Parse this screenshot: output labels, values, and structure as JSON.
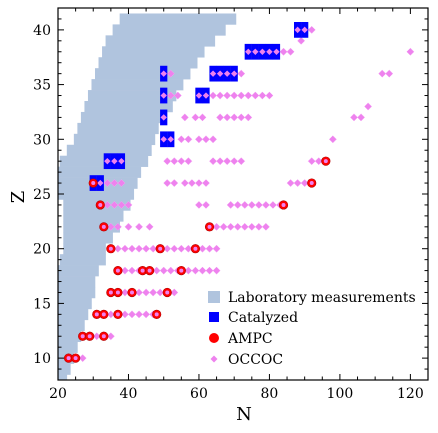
{
  "chart_data": {
    "type": "scatter",
    "xlabel": "N",
    "ylabel": "Z",
    "xlim": [
      20,
      125
    ],
    "ylim": [
      8,
      42
    ],
    "x_ticks": [
      20,
      40,
      60,
      80,
      100,
      120
    ],
    "y_ticks": [
      10,
      15,
      20,
      25,
      30,
      35,
      40
    ],
    "legend_position": "lower-right",
    "colors": {
      "lab": "#b0c4de",
      "catalyzed": "#0000ff",
      "ampc": "#ff0000",
      "occoc": "#ee82ee",
      "occoc_edge": "#f4a6f4"
    },
    "series": [
      {
        "name": "Laboratory measurements",
        "kind": "band",
        "rows": [
          [
            8,
            20,
            22
          ],
          [
            9,
            20,
            23
          ],
          [
            10,
            20,
            24
          ],
          [
            11,
            20,
            25
          ],
          [
            12,
            20,
            26
          ],
          [
            13,
            20,
            27
          ],
          [
            14,
            20,
            28
          ],
          [
            15,
            20,
            29
          ],
          [
            16,
            20,
            30
          ],
          [
            17,
            20,
            30
          ],
          [
            18,
            20,
            31
          ],
          [
            19,
            21,
            33
          ],
          [
            20,
            22,
            33
          ],
          [
            21,
            22,
            35
          ],
          [
            22,
            22,
            37
          ],
          [
            23,
            22,
            38
          ],
          [
            24,
            22,
            40
          ],
          [
            25,
            20,
            41
          ],
          [
            26,
            20,
            42
          ],
          [
            27,
            20,
            43
          ],
          [
            28,
            21,
            45
          ],
          [
            29,
            23,
            46
          ],
          [
            30,
            25,
            47
          ],
          [
            31,
            26,
            48
          ],
          [
            32,
            27,
            50
          ],
          [
            33,
            28,
            52
          ],
          [
            34,
            29,
            53
          ],
          [
            35,
            30,
            55
          ],
          [
            36,
            31,
            57
          ],
          [
            37,
            32,
            59
          ],
          [
            38,
            33,
            61
          ],
          [
            39,
            34,
            64
          ],
          [
            40,
            36,
            67
          ],
          [
            41,
            38,
            70
          ]
        ]
      },
      {
        "name": "Catalyzed",
        "kind": "square",
        "points": [
          [
            34,
            28
          ],
          [
            36,
            28
          ],
          [
            38,
            28
          ],
          [
            30,
            26
          ],
          [
            32,
            26
          ],
          [
            50,
            36
          ],
          [
            50,
            34
          ],
          [
            50,
            32
          ],
          [
            50,
            30
          ],
          [
            52,
            30
          ],
          [
            60,
            34
          ],
          [
            62,
            34
          ],
          [
            64,
            36
          ],
          [
            66,
            36
          ],
          [
            68,
            36
          ],
          [
            70,
            36
          ],
          [
            74,
            38
          ],
          [
            76,
            38
          ],
          [
            78,
            38
          ],
          [
            80,
            38
          ],
          [
            82,
            38
          ],
          [
            88,
            40
          ],
          [
            90,
            40
          ]
        ]
      },
      {
        "name": "AMPC",
        "kind": "circle",
        "points": [
          [
            23,
            10
          ],
          [
            25,
            10
          ],
          [
            27,
            12
          ],
          [
            29,
            12
          ],
          [
            33,
            12
          ],
          [
            31,
            14
          ],
          [
            33,
            14
          ],
          [
            37,
            14
          ],
          [
            48,
            14
          ],
          [
            35,
            16
          ],
          [
            37,
            16
          ],
          [
            41,
            16
          ],
          [
            51,
            16
          ],
          [
            37,
            18
          ],
          [
            44,
            18
          ],
          [
            46,
            18
          ],
          [
            55,
            18
          ],
          [
            35,
            20
          ],
          [
            49,
            20
          ],
          [
            59,
            20
          ],
          [
            63,
            22
          ],
          [
            33,
            22
          ],
          [
            32,
            24
          ],
          [
            84,
            24
          ],
          [
            30,
            26
          ],
          [
            92,
            26
          ],
          [
            96,
            28
          ]
        ]
      },
      {
        "name": "OCCOC",
        "kind": "diamond",
        "points": [
          [
            27,
            10
          ],
          [
            31,
            12
          ],
          [
            35,
            12
          ],
          [
            35,
            14
          ],
          [
            39,
            14
          ],
          [
            41,
            14
          ],
          [
            43,
            14
          ],
          [
            45,
            14
          ],
          [
            47,
            14
          ],
          [
            39,
            16
          ],
          [
            43,
            16
          ],
          [
            45,
            16
          ],
          [
            47,
            16
          ],
          [
            49,
            16
          ],
          [
            53,
            16
          ],
          [
            39,
            18
          ],
          [
            41,
            18
          ],
          [
            43,
            18
          ],
          [
            48,
            18
          ],
          [
            50,
            18
          ],
          [
            52,
            18
          ],
          [
            54,
            18
          ],
          [
            57,
            18
          ],
          [
            59,
            18
          ],
          [
            61,
            18
          ],
          [
            63,
            18
          ],
          [
            65,
            18
          ],
          [
            37,
            20
          ],
          [
            39,
            20
          ],
          [
            41,
            20
          ],
          [
            43,
            20
          ],
          [
            45,
            20
          ],
          [
            47,
            20
          ],
          [
            51,
            20
          ],
          [
            53,
            20
          ],
          [
            55,
            20
          ],
          [
            57,
            20
          ],
          [
            61,
            20
          ],
          [
            63,
            20
          ],
          [
            65,
            20
          ],
          [
            35,
            22
          ],
          [
            37,
            22
          ],
          [
            40,
            22
          ],
          [
            43,
            22
          ],
          [
            46,
            22
          ],
          [
            65,
            22
          ],
          [
            67,
            22
          ],
          [
            69,
            22
          ],
          [
            71,
            22
          ],
          [
            73,
            22
          ],
          [
            75,
            22
          ],
          [
            77,
            22
          ],
          [
            79,
            22
          ],
          [
            34,
            24
          ],
          [
            36,
            24
          ],
          [
            38,
            24
          ],
          [
            40,
            24
          ],
          [
            69,
            24
          ],
          [
            71,
            24
          ],
          [
            73,
            24
          ],
          [
            75,
            24
          ],
          [
            77,
            24
          ],
          [
            79,
            24
          ],
          [
            81,
            24
          ],
          [
            83,
            24
          ],
          [
            34,
            26
          ],
          [
            36,
            26
          ],
          [
            38,
            26
          ],
          [
            51,
            26
          ],
          [
            53,
            26
          ],
          [
            86,
            26
          ],
          [
            88,
            26
          ],
          [
            90,
            26
          ],
          [
            51,
            28
          ],
          [
            53,
            28
          ],
          [
            55,
            28
          ],
          [
            57,
            28
          ],
          [
            92,
            28
          ],
          [
            94,
            28
          ],
          [
            55,
            30
          ],
          [
            57,
            30
          ],
          [
            98,
            30
          ],
          [
            56,
            32
          ],
          [
            59,
            32
          ],
          [
            61,
            32
          ],
          [
            104,
            32
          ],
          [
            106,
            32
          ],
          [
            60,
            30
          ],
          [
            62,
            30
          ],
          [
            64,
            30
          ],
          [
            64,
            28
          ],
          [
            66,
            28
          ],
          [
            68,
            28
          ],
          [
            70,
            28
          ],
          [
            72,
            28
          ],
          [
            52,
            34
          ],
          [
            54,
            34
          ],
          [
            64,
            34
          ],
          [
            66,
            34
          ],
          [
            68,
            34
          ],
          [
            70,
            34
          ],
          [
            72,
            34
          ],
          [
            74,
            34
          ],
          [
            76,
            34
          ],
          [
            78,
            34
          ],
          [
            80,
            34
          ],
          [
            52,
            36
          ],
          [
            72,
            36
          ],
          [
            56,
            26
          ],
          [
            58,
            26
          ],
          [
            60,
            26
          ],
          [
            62,
            26
          ],
          [
            60,
            24
          ],
          [
            62,
            24
          ],
          [
            66,
            32
          ],
          [
            68,
            32
          ],
          [
            70,
            32
          ],
          [
            72,
            32
          ],
          [
            74,
            32
          ],
          [
            108,
            33
          ],
          [
            112,
            36
          ],
          [
            114,
            36
          ],
          [
            120,
            38
          ],
          [
            84,
            38
          ],
          [
            86,
            38
          ],
          [
            89,
            39
          ],
          [
            92,
            40
          ]
        ]
      }
    ]
  }
}
